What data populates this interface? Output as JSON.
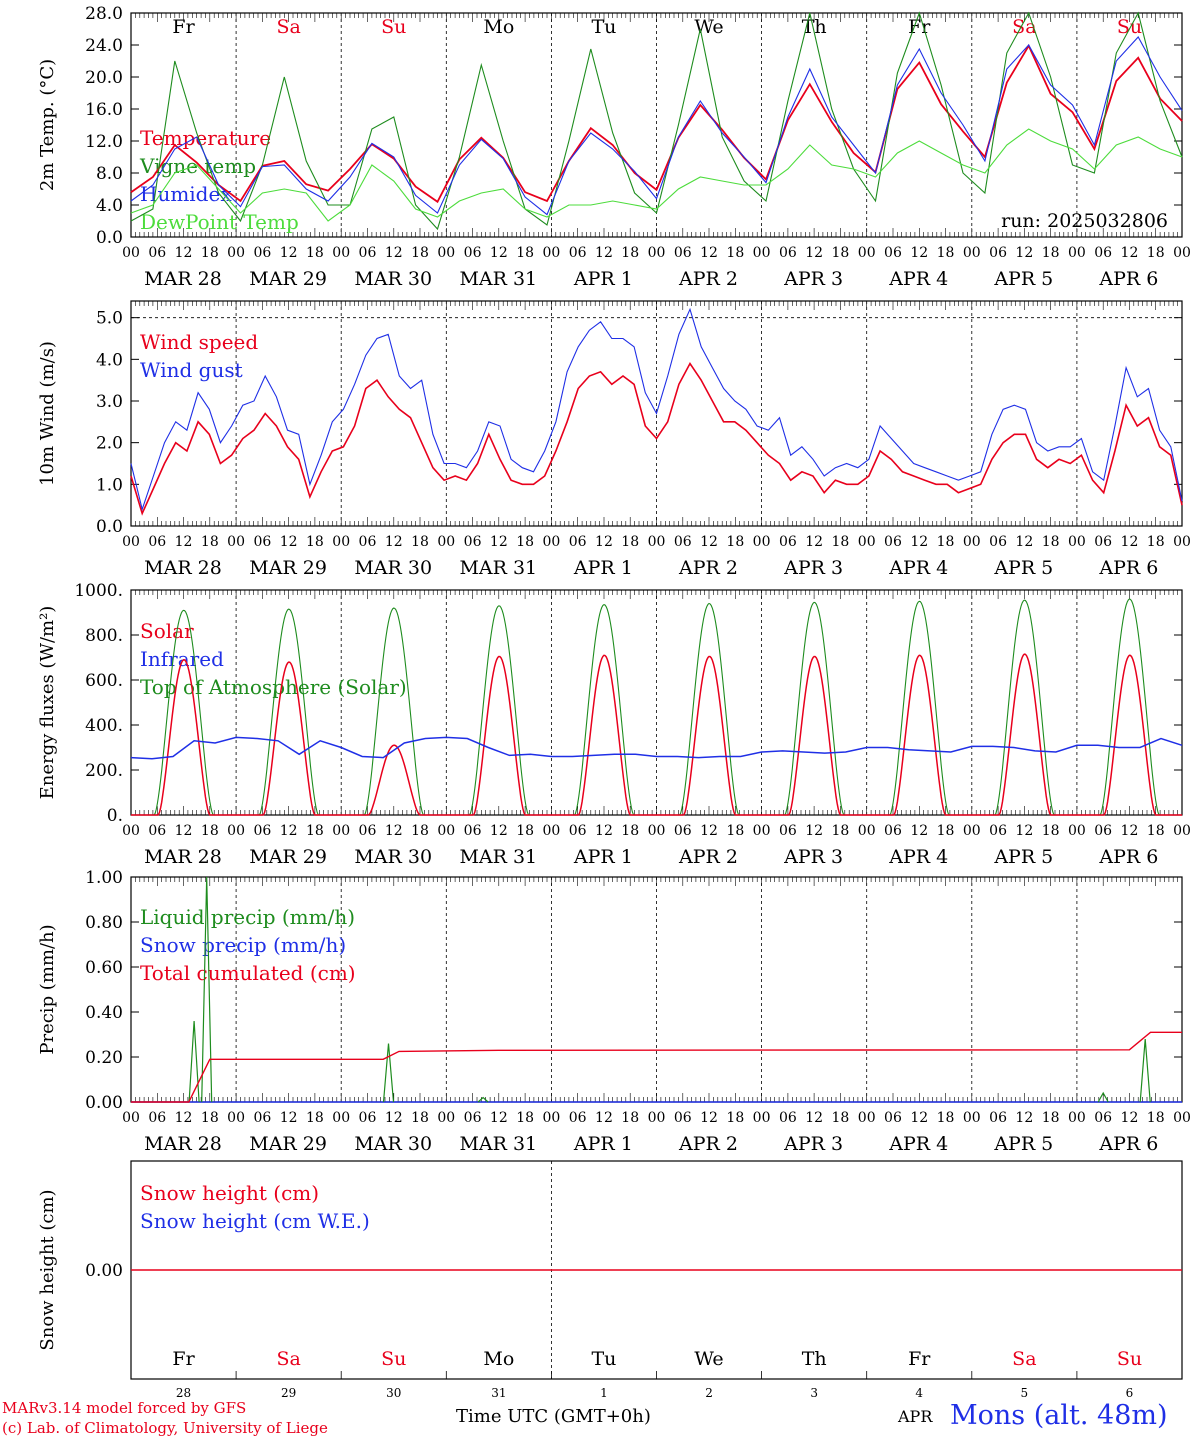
{
  "chart_data": [
    {
      "type": "line",
      "ylabel": "2m Temp. (°C)",
      "ylim": [
        0,
        28
      ],
      "yticks": [
        "0.0",
        "4.0",
        "8.0",
        "12.0",
        "16.0",
        "20.0",
        "24.0",
        "28.0"
      ],
      "run_label": "run: 2025032806",
      "legend_placement": "left",
      "series": [
        {
          "name": "Temperature",
          "color": "#e8001c",
          "values": [
            5.6,
            7.5,
            11.5,
            9.3,
            6.5,
            4.5,
            8.9,
            9.5,
            6.6,
            5.8,
            8.5,
            11.6,
            9.8,
            6.3,
            4.4,
            9.7,
            12.4,
            9.9,
            5.6,
            4.5,
            9.5,
            13.6,
            11.5,
            8.0,
            5.9,
            12.4,
            16.5,
            13.4,
            9.9,
            7.2,
            14.6,
            19.1,
            14.4,
            10.5,
            8.1,
            18.5,
            21.8,
            16.6,
            13.2,
            10.0,
            19.3,
            23.9,
            17.9,
            15.6,
            11.0,
            19.5,
            22.4,
            17.3,
            14.5
          ]
        },
        {
          "name": "Vigne temp",
          "color": "#1e8c1e",
          "values": [
            2.0,
            3.5,
            22.0,
            13.0,
            5.5,
            2.0,
            9.0,
            20.0,
            9.5,
            4.0,
            4.0,
            13.5,
            15.0,
            4.0,
            1.0,
            10.0,
            21.5,
            12.0,
            3.5,
            1.5,
            12.0,
            23.5,
            13.0,
            5.5,
            3.0,
            14.0,
            26.0,
            12.5,
            7.0,
            4.5,
            17.0,
            28.5,
            16.0,
            8.5,
            4.5,
            20.5,
            29.0,
            19.0,
            8.0,
            5.5,
            23.0,
            30.5,
            20.0,
            9.0,
            8.0,
            23.0,
            29.0,
            17.0,
            10.0
          ]
        },
        {
          "name": "Humidex",
          "color": "#1f2fe6",
          "values": [
            4.5,
            6.5,
            11.0,
            12.5,
            6.5,
            3.8,
            8.8,
            9.0,
            6.0,
            4.5,
            7.5,
            11.7,
            10.0,
            5.2,
            3.0,
            9.0,
            12.2,
            9.8,
            5.0,
            2.8,
            9.5,
            13.0,
            11.0,
            8.2,
            4.8,
            12.5,
            17.0,
            13.0,
            10.0,
            6.8,
            15.0,
            21.0,
            15.0,
            11.5,
            8.0,
            19.0,
            23.5,
            18.0,
            14.0,
            9.5,
            21.0,
            24.0,
            19.0,
            16.5,
            11.5,
            22.0,
            25.0,
            20.0,
            15.8
          ]
        },
        {
          "name": "DewPoint Temp",
          "color": "#4ddc3c",
          "values": [
            3.0,
            4.0,
            8.0,
            9.0,
            6.0,
            3.0,
            5.5,
            6.0,
            5.5,
            2.0,
            4.0,
            9.0,
            7.0,
            3.5,
            2.5,
            4.5,
            5.5,
            6.0,
            3.5,
            2.5,
            4.0,
            4.0,
            4.5,
            4.0,
            3.5,
            6.0,
            7.5,
            7.0,
            6.5,
            6.5,
            8.5,
            11.5,
            9.0,
            8.5,
            7.5,
            10.5,
            12.0,
            10.5,
            9.0,
            8.0,
            11.5,
            13.5,
            12.0,
            11.0,
            8.5,
            11.5,
            12.5,
            11.0,
            10.0
          ]
        }
      ]
    },
    {
      "type": "line",
      "ylabel": "10m Wind (m/s)",
      "ylim": [
        0,
        5.4
      ],
      "yticks": [
        "0.0",
        "1.0",
        "2.0",
        "3.0",
        "4.0",
        "5.0"
      ],
      "dashed_reference": 5.0,
      "legend_placement": "top-left",
      "series": [
        {
          "name": "Wind speed",
          "color": "#e8001c",
          "values": [
            1.2,
            0.3,
            0.9,
            1.5,
            2.0,
            1.8,
            2.5,
            2.2,
            1.5,
            1.7,
            2.1,
            2.3,
            2.7,
            2.4,
            1.9,
            1.6,
            0.7,
            1.3,
            1.8,
            1.9,
            2.4,
            3.3,
            3.5,
            3.1,
            2.8,
            2.6,
            2.0,
            1.4,
            1.1,
            1.2,
            1.1,
            1.5,
            2.2,
            1.6,
            1.1,
            1.0,
            1.0,
            1.2,
            1.8,
            2.5,
            3.3,
            3.6,
            3.7,
            3.4,
            3.6,
            3.4,
            2.4,
            2.1,
            2.5,
            3.4,
            3.9,
            3.5,
            3.0,
            2.5,
            2.5,
            2.3,
            2.0,
            1.7,
            1.5,
            1.1,
            1.3,
            1.2,
            0.8,
            1.1,
            1.0,
            1.0,
            1.2,
            1.8,
            1.6,
            1.3,
            1.2,
            1.1,
            1.0,
            1.0,
            0.8,
            0.9,
            1.0,
            1.6,
            2.0,
            2.2,
            2.2,
            1.6,
            1.4,
            1.6,
            1.5,
            1.7,
            1.1,
            0.8,
            1.8,
            2.9,
            2.4,
            2.6,
            1.9,
            1.7,
            0.5
          ]
        },
        {
          "name": "Wind gust",
          "color": "#1f2fe6",
          "values": [
            1.5,
            0.4,
            1.2,
            2.0,
            2.5,
            2.3,
            3.2,
            2.8,
            2.0,
            2.4,
            2.9,
            3.0,
            3.6,
            3.1,
            2.3,
            2.2,
            1.0,
            1.7,
            2.5,
            2.8,
            3.4,
            4.1,
            4.5,
            4.6,
            3.6,
            3.3,
            3.5,
            2.2,
            1.5,
            1.5,
            1.4,
            1.8,
            2.5,
            2.4,
            1.6,
            1.4,
            1.3,
            1.8,
            2.5,
            3.7,
            4.3,
            4.7,
            4.9,
            4.5,
            4.5,
            4.3,
            3.2,
            2.7,
            3.6,
            4.6,
            5.2,
            4.3,
            3.8,
            3.3,
            3.0,
            2.8,
            2.4,
            2.3,
            2.6,
            1.7,
            1.9,
            1.6,
            1.2,
            1.4,
            1.5,
            1.4,
            1.6,
            2.4,
            2.1,
            1.8,
            1.5,
            1.4,
            1.3,
            1.2,
            1.1,
            1.2,
            1.3,
            2.2,
            2.8,
            2.9,
            2.8,
            2.0,
            1.8,
            1.9,
            1.9,
            2.1,
            1.3,
            1.1,
            2.4,
            3.8,
            3.1,
            3.3,
            2.3,
            1.9,
            0.6
          ]
        }
      ]
    },
    {
      "type": "line",
      "ylabel": "Energy fluxes (W/m²)",
      "ylim": [
        0,
        1000
      ],
      "yticks": [
        "0.",
        "200.",
        "400.",
        "600.",
        "800.",
        "1000."
      ],
      "legend_placement": "top-left",
      "series": [
        {
          "name": "Solar",
          "color": "#e8001c",
          "peaks": [
            690,
            680,
            310,
            705,
            710,
            705,
            705,
            710,
            715,
            710,
            660
          ]
        },
        {
          "name": "Infrared",
          "color": "#1f2fe6",
          "values": [
            255,
            250,
            260,
            330,
            320,
            345,
            340,
            330,
            270,
            330,
            300,
            260,
            255,
            320,
            340,
            345,
            340,
            300,
            265,
            270,
            260,
            260,
            265,
            270,
            270,
            260,
            260,
            255,
            260,
            260,
            280,
            285,
            280,
            275,
            280,
            300,
            300,
            290,
            285,
            280,
            305,
            305,
            300,
            285,
            280,
            310,
            310,
            300,
            300,
            340,
            310
          ]
        },
        {
          "name": "Top of Atmosphere (Solar)",
          "color": "#1e8c1e",
          "peaks": [
            910,
            915,
            920,
            930,
            935,
            940,
            945,
            950,
            955,
            960,
            965
          ]
        }
      ]
    },
    {
      "type": "line",
      "ylabel": "Precip (mm/h)",
      "ylim": [
        0,
        1.0
      ],
      "yticks": [
        "0.00",
        "0.20",
        "0.40",
        "0.60",
        "0.80",
        "1.00"
      ],
      "legend_placement": "top-left",
      "series": [
        {
          "name": "Liquid precip (mm/h)",
          "color": "#1e8c1e",
          "events": [
            [
              0.6,
              0.36
            ],
            [
              0.72,
              1.0
            ],
            [
              2.45,
              0.26
            ],
            [
              3.35,
              0.02
            ],
            [
              9.25,
              0.04
            ],
            [
              9.65,
              0.28
            ]
          ]
        },
        {
          "name": "Snow precip (mm/h)",
          "color": "#1f2fe6",
          "values": [
            0.0
          ]
        },
        {
          "name": "Total cumulated (cm)",
          "color": "#e8001c",
          "steps": [
            [
              0.0,
              0.0
            ],
            [
              0.55,
              0.0
            ],
            [
              0.75,
              0.19
            ],
            [
              2.4,
              0.19
            ],
            [
              2.55,
              0.225
            ],
            [
              3.5,
              0.23
            ],
            [
              9.5,
              0.232
            ],
            [
              9.7,
              0.31
            ],
            [
              10.0,
              0.31
            ]
          ]
        }
      ]
    },
    {
      "type": "line",
      "ylabel": "Snow height (cm)",
      "ylim": [
        -1,
        1
      ],
      "yticks": [
        "0.00"
      ],
      "legend_placement": "top-left",
      "series": [
        {
          "name": "Snow height (cm)",
          "color": "#e8001c",
          "values": [
            0.0
          ]
        },
        {
          "name": "Snow height (cm W.E.)",
          "color": "#1f2fe6",
          "values": [
            0.0
          ]
        }
      ]
    }
  ],
  "hour_ticks": [
    "00",
    "06",
    "12",
    "18"
  ],
  "dates": [
    "MAR 28",
    "MAR 29",
    "MAR 30",
    "MAR 31",
    "APR  1",
    "APR  2",
    "APR  3",
    "APR  4",
    "APR  5",
    "APR  6"
  ],
  "days": [
    {
      "label": "Fr",
      "num": "28",
      "color": "#000000"
    },
    {
      "label": "Sa",
      "num": "29",
      "color": "#e8001c"
    },
    {
      "label": "Su",
      "num": "30",
      "color": "#e8001c"
    },
    {
      "label": "Mo",
      "num": "31",
      "color": "#000000"
    },
    {
      "label": "Tu",
      "num": "1",
      "color": "#000000"
    },
    {
      "label": "We",
      "num": "2",
      "color": "#000000"
    },
    {
      "label": "Th",
      "num": "3",
      "color": "#000000"
    },
    {
      "label": "Fr",
      "num": "4",
      "color": "#000000"
    },
    {
      "label": "Sa",
      "num": "5",
      "color": "#e8001c"
    },
    {
      "label": "Su",
      "num": "6",
      "color": "#e8001c"
    }
  ],
  "footer": {
    "credit_line1": "MARv3.14 model forced by GFS",
    "credit_line2": "(c) Lab. of Climatology, University of Liege",
    "x_title": "Time UTC (GMT+0h)",
    "month_label": "APR",
    "station": "Mons (alt. 48m)"
  }
}
